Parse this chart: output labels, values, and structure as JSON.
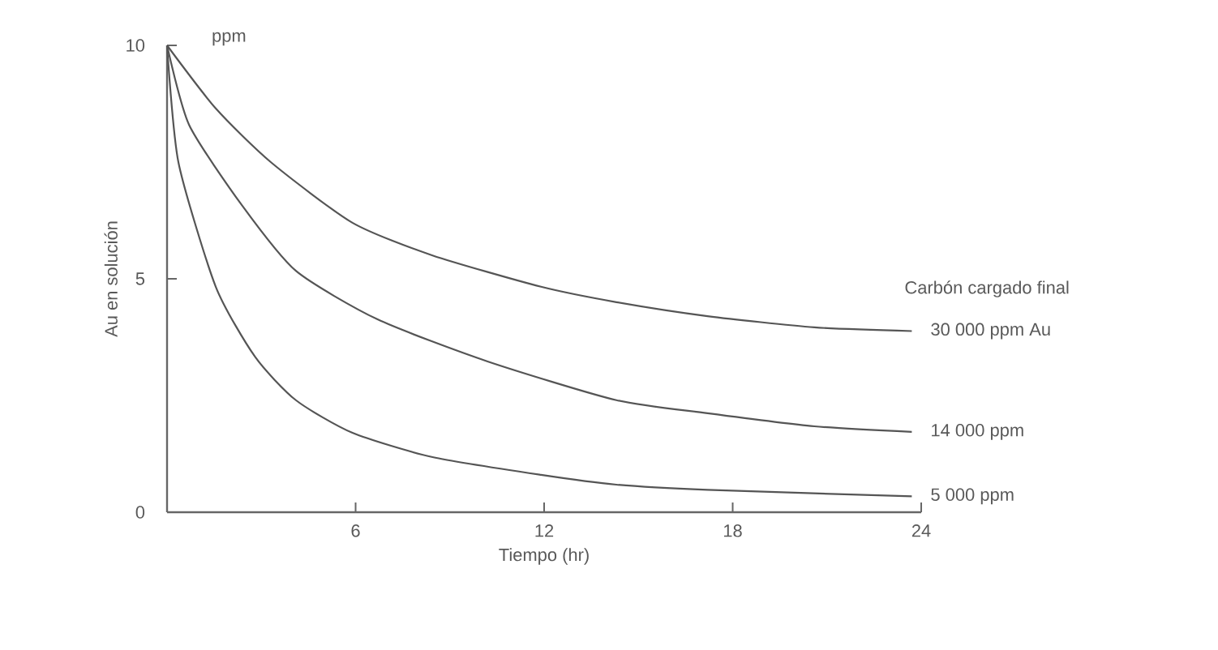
{
  "chart_data": {
    "type": "line",
    "xlabel": "Tiempo  (hr)",
    "ylabel": "Au en solución",
    "legend_title": "Carbón cargado final",
    "annotations": [
      "ppm"
    ],
    "xlim": [
      0,
      24
    ],
    "ylim": [
      0,
      10
    ],
    "xticks": [
      6,
      12,
      18,
      24
    ],
    "yticks": [
      0,
      5,
      10
    ],
    "grid": false,
    "legend": false,
    "marker": "none",
    "line_style": "solid",
    "series": [
      {
        "name": "30 000 ppm Au",
        "color": "#555555",
        "x": [
          0,
          1.55,
          3.3,
          5.9,
          8.45,
          11.9,
          14.3,
          17.2,
          20.6,
          23.7
        ],
        "values": [
          10,
          8.65,
          7.5,
          6.2,
          5.5,
          4.83,
          4.5,
          4.2,
          3.96,
          3.88
        ]
      },
      {
        "name": "14 000 ppm",
        "color": "#555555",
        "x": [
          0,
          0.7,
          2.4,
          4.1,
          6.7,
          10.2,
          14.3,
          17.2,
          20.6,
          23.7
        ],
        "values": [
          10,
          8.3,
          6.56,
          5.17,
          4.13,
          3.23,
          2.4,
          2.12,
          1.84,
          1.72
        ]
      },
      {
        "name": "5 000 ppm",
        "color": "#555555",
        "x": [
          0,
          0.36,
          1.55,
          2.8,
          4.1,
          5.9,
          8.45,
          11.9,
          14.3,
          17.2,
          23.7
        ],
        "values": [
          10,
          7.5,
          4.83,
          3.33,
          2.4,
          1.7,
          1.18,
          0.8,
          0.59,
          0.48,
          0.34
        ]
      }
    ]
  }
}
